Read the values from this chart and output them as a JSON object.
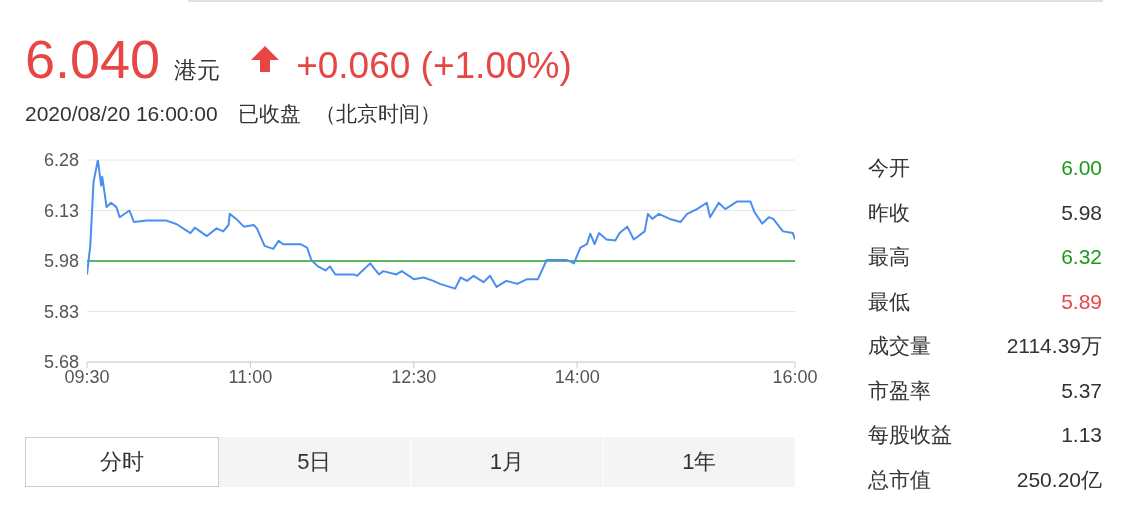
{
  "chart_data": [
    {
      "type": "line",
      "title": "6.040",
      "annotations": [
        "港元",
        "+0.060 (+1.00%)",
        "2020/08/20 16:00:00",
        "已收盘",
        "（北京时间）",
        "分时",
        "5日",
        "1月",
        "1年"
      ],
      "x": [
        9.5,
        9.53,
        9.56,
        9.6,
        9.63,
        9.64,
        9.68,
        9.72,
        9.77,
        9.8,
        9.89,
        9.93,
        10.05,
        10.23,
        10.32,
        10.45,
        10.49,
        10.6,
        10.69,
        10.75,
        10.8,
        10.81,
        10.87,
        10.94,
        11.03,
        11.06,
        11.13,
        11.21,
        11.26,
        11.3,
        11.46,
        11.52,
        11.56,
        11.62,
        11.69,
        11.73,
        11.78,
        11.95,
        11.98,
        12.1,
        12.18,
        12.22,
        12.34,
        12.39,
        12.5,
        12.59,
        12.68,
        12.74,
        12.88,
        12.93,
        12.99,
        13.05,
        13.14,
        13.2,
        13.26,
        13.35,
        13.45,
        13.54,
        13.64,
        13.72,
        13.9,
        13.94,
        13.97,
        14.03,
        14.09,
        14.12,
        14.16,
        14.2,
        14.27,
        14.35,
        14.39,
        14.46,
        14.52,
        14.62,
        14.65,
        14.69,
        14.75,
        14.85,
        14.95,
        15.01,
        15.1,
        15.19,
        15.22,
        15.3,
        15.36,
        15.47,
        15.59,
        15.63,
        15.7,
        15.76,
        15.8,
        15.89,
        15.98,
        16
      ],
      "series": [
        {
          "color": "#4a8ff0",
          "values": [
            5.94,
            6.025,
            6.215,
            6.28,
            6.204,
            6.23,
            6.14,
            6.153,
            6.14,
            6.11,
            6.13,
            6.096,
            6.1,
            6.1,
            6.09,
            6.063,
            6.079,
            6.054,
            6.077,
            6.068,
            6.087,
            6.12,
            6.105,
            6.082,
            6.087,
            6.077,
            6.025,
            6.016,
            6.04,
            6.03,
            6.03,
            6.02,
            5.983,
            5.964,
            5.952,
            5.964,
            5.94,
            5.94,
            5.936,
            5.973,
            5.94,
            5.95,
            5.94,
            5.95,
            5.926,
            5.931,
            5.921,
            5.912,
            5.898,
            5.931,
            5.921,
            5.936,
            5.917,
            5.936,
            5.903,
            5.921,
            5.912,
            5.926,
            5.926,
            5.983,
            5.983,
            5.978,
            5.973,
            6.02,
            6.03,
            6.061,
            6.03,
            6.063,
            6.044,
            6.041,
            6.063,
            6.082,
            6.044,
            6.068,
            6.12,
            6.105,
            6.12,
            6.105,
            6.096,
            6.12,
            6.134,
            6.153,
            6.11,
            6.153,
            6.134,
            6.157,
            6.157,
            6.124,
            6.091,
            6.11,
            6.105,
            6.068,
            6.063,
            6.044
          ]
        }
      ],
      "xlim": [
        9.5,
        16
      ],
      "xticks": [
        {
          "value": 9.5,
          "label": "09:30"
        },
        {
          "value": 11,
          "label": "11:00"
        },
        {
          "value": 12.5,
          "label": "12:30"
        },
        {
          "value": 14,
          "label": "14:00"
        },
        {
          "value": 16,
          "label": "16:00"
        }
      ],
      "ylim": [
        5.68,
        6.28
      ],
      "yticks": [
        5.68,
        5.83,
        5.98,
        6.13,
        6.28
      ],
      "grid": "y",
      "marker": "none",
      "line_style": "solid",
      "ref_lines": [
        {
          "axis": "y",
          "value": 5.98,
          "color": "#5cb85c"
        }
      ]
    },
    {
      "type": "other",
      "categories": [
        "今开",
        "昨收",
        "最高",
        "最低",
        "成交量",
        "市盈率",
        "每股收益",
        "总市值"
      ],
      "value_labels": [
        "6.00",
        "5.98",
        "6.32",
        "5.89",
        "2114.39万",
        "5.37",
        "1.13",
        "250.20亿"
      ],
      "colors": [
        "#1a9a1a",
        "#333333",
        "#1a9a1a",
        "#e84545",
        "#333333",
        "#333333",
        "#333333",
        "#333333"
      ]
    }
  ]
}
